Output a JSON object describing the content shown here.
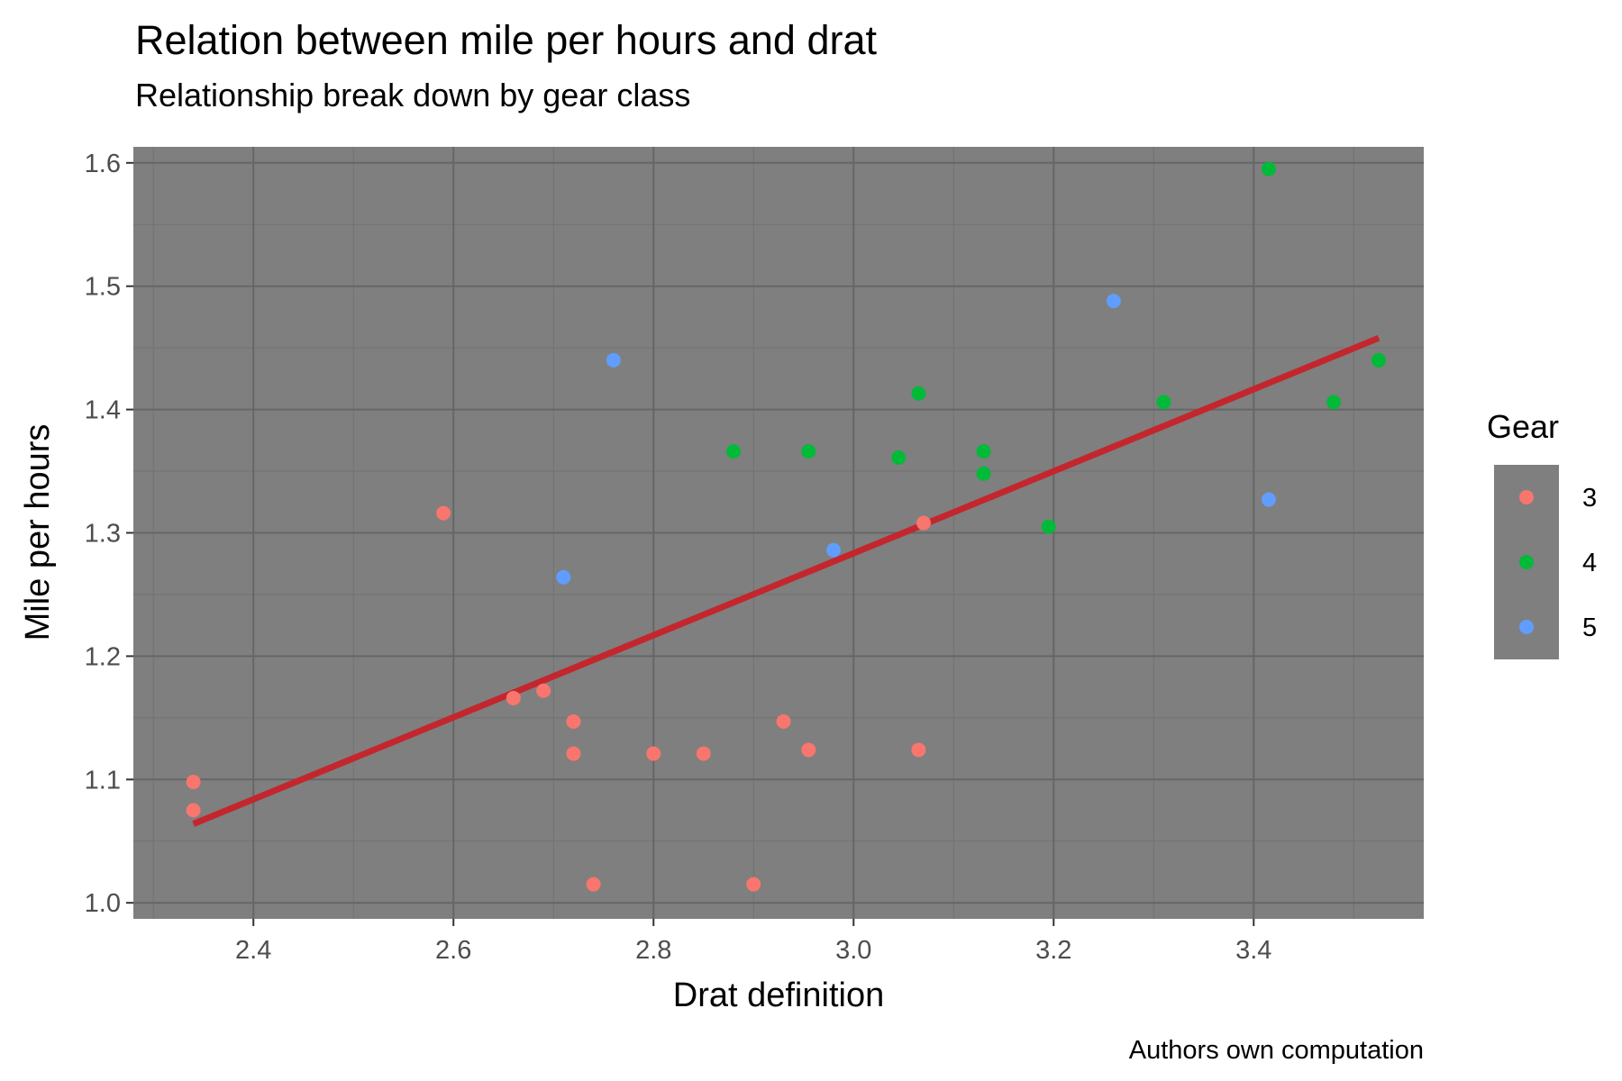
{
  "chart_data": {
    "type": "scatter",
    "title": "Relation between mile per hours and drat",
    "subtitle": "Relationship break down by gear class",
    "xlabel": "Drat definition",
    "ylabel": "Mile per hours",
    "caption": "Authors own computation",
    "xlim": [
      2.28,
      3.57
    ],
    "ylim": [
      0.987,
      1.613
    ],
    "x_ticks": [
      2.4,
      2.6,
      2.8,
      3.0,
      3.2,
      3.4
    ],
    "x_tick_labels": [
      "2.4",
      "2.6",
      "2.8",
      "3.0",
      "3.2",
      "3.4"
    ],
    "y_ticks": [
      1.0,
      1.1,
      1.2,
      1.3,
      1.4,
      1.5,
      1.6
    ],
    "y_tick_labels": [
      "1.0",
      "1.1",
      "1.2",
      "1.3",
      "1.4",
      "1.5",
      "1.6"
    ],
    "grid": true,
    "panel_background": "#7f7f7f",
    "legend": {
      "title": "Gear",
      "position": "right"
    },
    "series": [
      {
        "name": "3",
        "color": "#F8766D",
        "points": [
          [
            2.34,
            1.098
          ],
          [
            2.34,
            1.075
          ],
          [
            2.59,
            1.316
          ],
          [
            2.66,
            1.166
          ],
          [
            2.69,
            1.172
          ],
          [
            2.72,
            1.147
          ],
          [
            2.72,
            1.121
          ],
          [
            2.74,
            1.015
          ],
          [
            2.8,
            1.121
          ],
          [
            2.85,
            1.121
          ],
          [
            2.9,
            1.015
          ],
          [
            2.93,
            1.147
          ],
          [
            2.955,
            1.124
          ],
          [
            3.065,
            1.124
          ],
          [
            3.07,
            1.308
          ]
        ]
      },
      {
        "name": "4",
        "color": "#00BA38",
        "points": [
          [
            2.88,
            1.366
          ],
          [
            2.955,
            1.366
          ],
          [
            3.045,
            1.361
          ],
          [
            3.065,
            1.413
          ],
          [
            3.13,
            1.366
          ],
          [
            3.13,
            1.348
          ],
          [
            3.195,
            1.305
          ],
          [
            3.31,
            1.406
          ],
          [
            3.415,
            1.595
          ],
          [
            3.48,
            1.406
          ],
          [
            3.525,
            1.44
          ]
        ]
      },
      {
        "name": "5",
        "color": "#619CFF",
        "points": [
          [
            2.71,
            1.264
          ],
          [
            2.76,
            1.44
          ],
          [
            2.98,
            1.286
          ],
          [
            3.26,
            1.488
          ],
          [
            3.415,
            1.327
          ]
        ]
      }
    ],
    "trend_line": {
      "color": "#C4262E",
      "points": [
        [
          2.34,
          1.064
        ],
        [
          3.525,
          1.458
        ]
      ]
    }
  }
}
